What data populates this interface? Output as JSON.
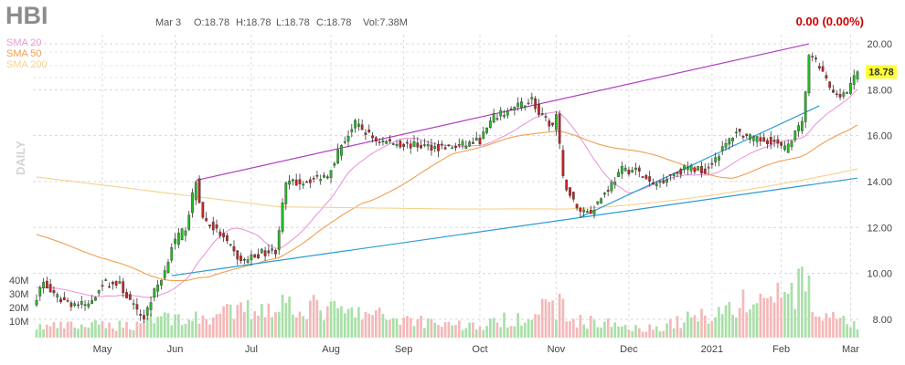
{
  "header": {
    "ticker": "HBI",
    "date": "Mar 3",
    "open": "O:18.78",
    "high": "H:18.78",
    "low": "L:18.78",
    "close": "C:18.78",
    "volume": "Vol:7.38M",
    "change": "0.00 (0.00%)",
    "timeframe": "DAILY",
    "current_price": "18.78"
  },
  "legend": [
    {
      "name": "SMA 20",
      "color": "#e89ad8"
    },
    {
      "name": "SMA 50",
      "color": "#f0a050"
    },
    {
      "name": "SMA 200",
      "color": "#f5d28c"
    }
  ],
  "colors": {
    "up": "#22bb22",
    "down": "#cc2222",
    "vol_up": "#a8e0a8",
    "vol_down": "#f4b8b8",
    "trend_upper": "#b040c0",
    "trend_lower": "#2a9ad4",
    "current_badge": "#ffff33"
  },
  "chart_data": {
    "type": "candlestick",
    "price_axis": {
      "ticks": [
        "20.00",
        "18.00",
        "16.00",
        "14.00",
        "12.00",
        "10.00",
        "8.00"
      ],
      "ylim": [
        7.2,
        20.4
      ]
    },
    "volume_axis": {
      "ticks": [
        "40M",
        "30M",
        "20M",
        "10M"
      ]
    },
    "x_ticks": [
      {
        "label": "May",
        "date": "2020-05-01"
      },
      {
        "label": "Jun",
        "date": "2020-06-01"
      },
      {
        "label": "Jul",
        "date": "2020-07-01"
      },
      {
        "label": "Aug",
        "date": "2020-08-03"
      },
      {
        "label": "Sep",
        "date": "2020-09-01"
      },
      {
        "label": "Oct",
        "date": "2020-10-01"
      },
      {
        "label": "Nov",
        "date": "2020-11-02"
      },
      {
        "label": "Dec",
        "date": "2020-12-01"
      },
      {
        "label": "2021",
        "date": "2021-01-04"
      },
      {
        "label": "Feb",
        "date": "2021-02-01"
      },
      {
        "label": "Mar",
        "date": "2021-03-01"
      }
    ],
    "x_range": [
      "2020-04-06",
      "2021-03-03"
    ],
    "price_anchors": [
      [
        "2020-04-06",
        9.0
      ],
      [
        "2020-04-08",
        9.6
      ],
      [
        "2020-04-13",
        9.0
      ],
      [
        "2020-04-20",
        8.7
      ],
      [
        "2020-04-27",
        8.6
      ],
      [
        "2020-05-01",
        9.6
      ],
      [
        "2020-05-08",
        9.5
      ],
      [
        "2020-05-15",
        8.3
      ],
      [
        "2020-05-19",
        8.1
      ],
      [
        "2020-05-22",
        9.2
      ],
      [
        "2020-05-27",
        10.1
      ],
      [
        "2020-05-29",
        11.2
      ],
      [
        "2020-06-04",
        12.0
      ],
      [
        "2020-06-09",
        14.0
      ],
      [
        "2020-06-11",
        12.4
      ],
      [
        "2020-06-18",
        11.7
      ],
      [
        "2020-06-26",
        10.5
      ],
      [
        "2020-07-06",
        10.9
      ],
      [
        "2020-07-10",
        11.0
      ],
      [
        "2020-07-15",
        13.9
      ],
      [
        "2020-07-22",
        14.0
      ],
      [
        "2020-07-31",
        14.3
      ],
      [
        "2020-08-06",
        15.6
      ],
      [
        "2020-08-12",
        16.5
      ],
      [
        "2020-08-20",
        15.8
      ],
      [
        "2020-09-02",
        15.6
      ],
      [
        "2020-09-15",
        15.5
      ],
      [
        "2020-09-22",
        15.5
      ],
      [
        "2020-10-01",
        15.8
      ],
      [
        "2020-10-07",
        16.8
      ],
      [
        "2020-10-15",
        17.2
      ],
      [
        "2020-10-22",
        17.6
      ],
      [
        "2020-10-26",
        16.9
      ],
      [
        "2020-10-30",
        16.4
      ],
      [
        "2020-11-02",
        16.9
      ],
      [
        "2020-11-04",
        14.1
      ],
      [
        "2020-11-10",
        12.8
      ],
      [
        "2020-11-16",
        12.7
      ],
      [
        "2020-11-20",
        13.5
      ],
      [
        "2020-11-27",
        14.5
      ],
      [
        "2020-12-03",
        14.5
      ],
      [
        "2020-12-10",
        13.8
      ],
      [
        "2020-12-17",
        14.3
      ],
      [
        "2020-12-24",
        14.6
      ],
      [
        "2020-12-31",
        14.5
      ],
      [
        "2021-01-08",
        15.6
      ],
      [
        "2021-01-13",
        16.2
      ],
      [
        "2021-01-20",
        15.8
      ],
      [
        "2021-01-27",
        15.8
      ],
      [
        "2021-02-02",
        15.4
      ],
      [
        "2021-02-04",
        15.9
      ],
      [
        "2021-02-09",
        16.5
      ],
      [
        "2021-02-11",
        19.5
      ],
      [
        "2021-02-16",
        19.0
      ],
      [
        "2021-02-22",
        17.8
      ],
      [
        "2021-02-26",
        17.9
      ],
      [
        "2021-03-03",
        18.78
      ]
    ],
    "volume_anchors": [
      [
        "2020-04-06",
        6
      ],
      [
        "2020-05-15",
        7
      ],
      [
        "2020-05-20",
        12
      ],
      [
        "2020-06-09",
        10
      ],
      [
        "2020-07-15",
        19
      ],
      [
        "2020-08-06",
        14
      ],
      [
        "2020-10-01",
        6
      ],
      [
        "2020-11-04",
        18
      ],
      [
        "2020-11-05",
        10
      ],
      [
        "2020-12-10",
        5
      ],
      [
        "2021-02-11",
        28
      ],
      [
        "2021-02-12",
        14
      ],
      [
        "2021-03-03",
        6
      ]
    ],
    "trendlines": [
      {
        "color": "trend_upper",
        "points": [
          [
            "2020-06-09",
            14.05
          ],
          [
            "2021-02-11",
            20.0
          ]
        ]
      },
      {
        "color": "trend_lower",
        "points": [
          [
            "2020-05-29",
            9.9
          ],
          [
            "2021-03-03",
            14.15
          ]
        ]
      },
      {
        "color": "trend_lower",
        "points": [
          [
            "2020-11-11",
            12.45
          ],
          [
            "2021-02-16",
            17.3
          ]
        ]
      }
    ],
    "sma_periods": [
      20,
      50,
      200
    ],
    "sma200_back_values": [
      12.9,
      13.8,
      14.3,
      14.3
    ],
    "series_names": [
      "SMA 20",
      "SMA 50",
      "SMA 200"
    ]
  }
}
